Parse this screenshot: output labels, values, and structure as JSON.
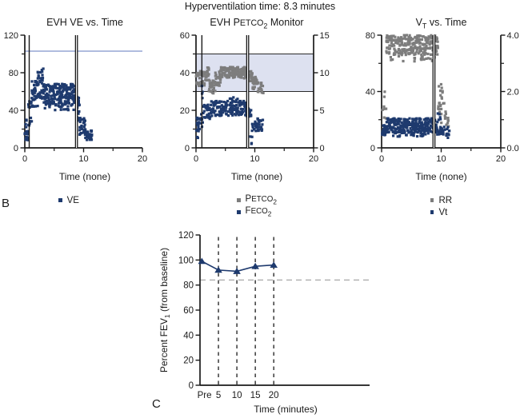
{
  "page": {
    "title": "Hyperventilation time: 8.3 minutes",
    "panel_b": "B",
    "panel_c": "C"
  },
  "colors": {
    "navy": "#1e3a6e",
    "gray": "#7d7d7d",
    "axis": "#1a1a1a",
    "refline": "#8194c9",
    "band_fill": "#dde1f0",
    "band_border": "#2a2a2a",
    "dashed_gray": "#b3b3b3",
    "background": "#ffffff"
  },
  "chart_data": [
    {
      "id": "ve",
      "type": "scatter",
      "title": "EVH VE vs. Time",
      "x": {
        "range": [
          0,
          20
        ],
        "ticks": [
          0,
          10,
          20
        ],
        "minor": [
          5,
          15
        ],
        "label": "Time (none)"
      },
      "y_left": {
        "range": [
          0,
          120
        ],
        "ticks": [
          0,
          40,
          80,
          120
        ],
        "minor": [
          20,
          60,
          100
        ]
      },
      "ref_line_y": 103,
      "event_lines": {
        "singles": [
          0.75
        ],
        "double": [
          8.62,
          8.95
        ]
      },
      "series": [
        {
          "name": "VE",
          "color_key": "navy",
          "marker": "square",
          "clusters": [
            [
              0,
              0.6,
              8,
              18,
              22
            ],
            [
              0.05,
              0.45,
              19,
              31,
              4
            ],
            [
              0.55,
              1.2,
              24,
              50,
              16
            ],
            [
              1.1,
              2.2,
              44,
              72,
              40
            ],
            [
              2.2,
              3.2,
              52,
              85,
              42
            ],
            [
              3.2,
              8.85,
              46,
              68,
              230
            ],
            [
              3.4,
              8.6,
              39,
              47,
              26
            ],
            [
              8.85,
              9.35,
              28,
              55,
              20
            ],
            [
              9.3,
              10.3,
              14,
              32,
              28
            ],
            [
              10.2,
              11.45,
              8,
              20,
              30
            ]
          ]
        }
      ],
      "legend": [
        {
          "color_key": "navy",
          "pre": "VE"
        }
      ]
    },
    {
      "id": "petco2",
      "type": "scatter",
      "title_parts": {
        "pre": "EVH P",
        "caps": "ETCO",
        "sub": "2",
        "post": " Monitor"
      },
      "x": {
        "range": [
          0,
          20
        ],
        "ticks": [
          0,
          10,
          20
        ],
        "minor": [
          5,
          15
        ],
        "label": "Time (none)"
      },
      "y_left": {
        "range": [
          0,
          60
        ],
        "ticks": [
          0,
          20,
          40,
          60
        ],
        "minor": [
          10,
          30,
          50
        ]
      },
      "y_right": {
        "range": [
          0,
          15
        ],
        "ticks": [
          0,
          5,
          10,
          15
        ],
        "labels": [
          "0",
          "5",
          "10",
          "15"
        ],
        "minor": []
      },
      "band": [
        30,
        50
      ],
      "event_lines": {
        "singles": [
          1.0
        ],
        "double": [
          8.62,
          8.95
        ]
      },
      "series": [
        {
          "name": "PETCO2",
          "color_key": "gray",
          "marker": "square",
          "clusters": [
            [
              0,
              0.35,
              32,
              40,
              10
            ],
            [
              0.3,
              1.5,
              33,
              41,
              32
            ],
            [
              1.5,
              2.2,
              36,
              43,
              22
            ],
            [
              2.2,
              3.3,
              29,
              36,
              28
            ],
            [
              3.3,
              4.2,
              33,
              41,
              26
            ],
            [
              4.2,
              8.85,
              37,
              43,
              150
            ],
            [
              8.85,
              9.6,
              35,
              42,
              22
            ],
            [
              9.6,
              10.4,
              31,
              38,
              22
            ],
            [
              10.4,
              11.45,
              29,
              35,
              20
            ]
          ]
        },
        {
          "name": "FECO2",
          "color_key": "navy",
          "marker": "square",
          "clusters": [
            [
              0,
              0.45,
              9,
              16,
              12
            ],
            [
              0.15,
              0.5,
              4,
              9,
              3
            ],
            [
              0.45,
              1.2,
              10,
              18,
              14
            ],
            [
              1.0,
              1.18,
              19,
              33,
              4
            ],
            [
              1.2,
              2.5,
              15,
              23,
              30
            ],
            [
              2.5,
              8.85,
              17,
              25,
              150
            ],
            [
              5.5,
              7.2,
              24,
              27,
              8
            ],
            [
              8.85,
              9.4,
              15,
              22,
              12
            ],
            [
              9.25,
              9.6,
              2,
              8,
              4
            ],
            [
              9.5,
              10.6,
              9,
              16,
              22
            ],
            [
              10.6,
              11.45,
              9,
              15,
              14
            ]
          ]
        }
      ],
      "legend": [
        {
          "color_key": "gray",
          "pre": "P",
          "caps": "ETCO",
          "sub": "2"
        },
        {
          "color_key": "navy",
          "pre": "F",
          "caps": "ECO",
          "sub": "2"
        }
      ]
    },
    {
      "id": "vt",
      "type": "scatter",
      "title_parts": {
        "pre": "V",
        "sub": "T",
        "post": " vs. Time"
      },
      "x": {
        "range": [
          0,
          20
        ],
        "ticks": [
          0,
          10,
          20
        ],
        "minor": [
          5,
          15
        ],
        "label": "Time (none)"
      },
      "y_left": {
        "range": [
          0,
          80
        ],
        "ticks": [
          0,
          40,
          80
        ],
        "minor": [
          20,
          60
        ]
      },
      "y_right": {
        "range": [
          0,
          4
        ],
        "ticks": [
          0,
          2,
          4
        ],
        "labels": [
          "0.0",
          "2.0",
          "4.0"
        ],
        "minor": [
          1,
          3
        ]
      },
      "event_lines": {
        "singles": [],
        "double": [
          8.62,
          8.95
        ]
      },
      "series": [
        {
          "name": "RR",
          "color_key": "gray",
          "marker": "square",
          "clusters": [
            [
              0.1,
              0.75,
              17,
              30,
              6
            ],
            [
              0.3,
              0.55,
              35,
              40,
              2
            ],
            [
              0.8,
              9.45,
              66,
              80,
              260
            ],
            [
              1.3,
              9.2,
              61,
              66,
              22
            ],
            [
              9.45,
              10.3,
              26,
              46,
              12
            ],
            [
              9.6,
              11.1,
              17,
              33,
              14
            ],
            [
              10.6,
              11.45,
              13,
              22,
              7
            ]
          ]
        },
        {
          "name": "Vt",
          "color_key": "navy",
          "marker": "square",
          "clusters": [
            [
              0,
              0.8,
              9,
              16,
              22
            ],
            [
              0.8,
              9.35,
              11,
              21,
              270
            ],
            [
              1.5,
              8.6,
              8,
              11,
              26
            ],
            [
              9.3,
              9.9,
              9,
              25,
              16
            ],
            [
              9.9,
              11.45,
              7,
              15,
              24
            ]
          ]
        }
      ],
      "legend": [
        {
          "color_key": "gray",
          "pre": "RR"
        },
        {
          "color_key": "navy",
          "pre": "Vt"
        }
      ]
    },
    {
      "id": "fev1",
      "type": "line",
      "ylabel_parts": {
        "pre": "Percent FEV",
        "sub": "1",
        "post": " (from baseline)"
      },
      "xlabel": "Time (minutes)",
      "categories": [
        "Pre",
        "5",
        "10",
        "15",
        "20"
      ],
      "x_positions": [
        0.5,
        5,
        10,
        15,
        20
      ],
      "label_positions": [
        1.2,
        5,
        10,
        15,
        20
      ],
      "values": [
        99,
        92,
        91,
        95,
        96
      ],
      "ylim": [
        0,
        120
      ],
      "y_ticks": [
        0,
        20,
        40,
        60,
        80,
        100,
        120
      ],
      "x_axis_end": 46,
      "dashed_h_y": 84,
      "dashed_v_x": [
        5,
        10,
        15,
        20
      ],
      "line_color_key": "navy"
    }
  ]
}
